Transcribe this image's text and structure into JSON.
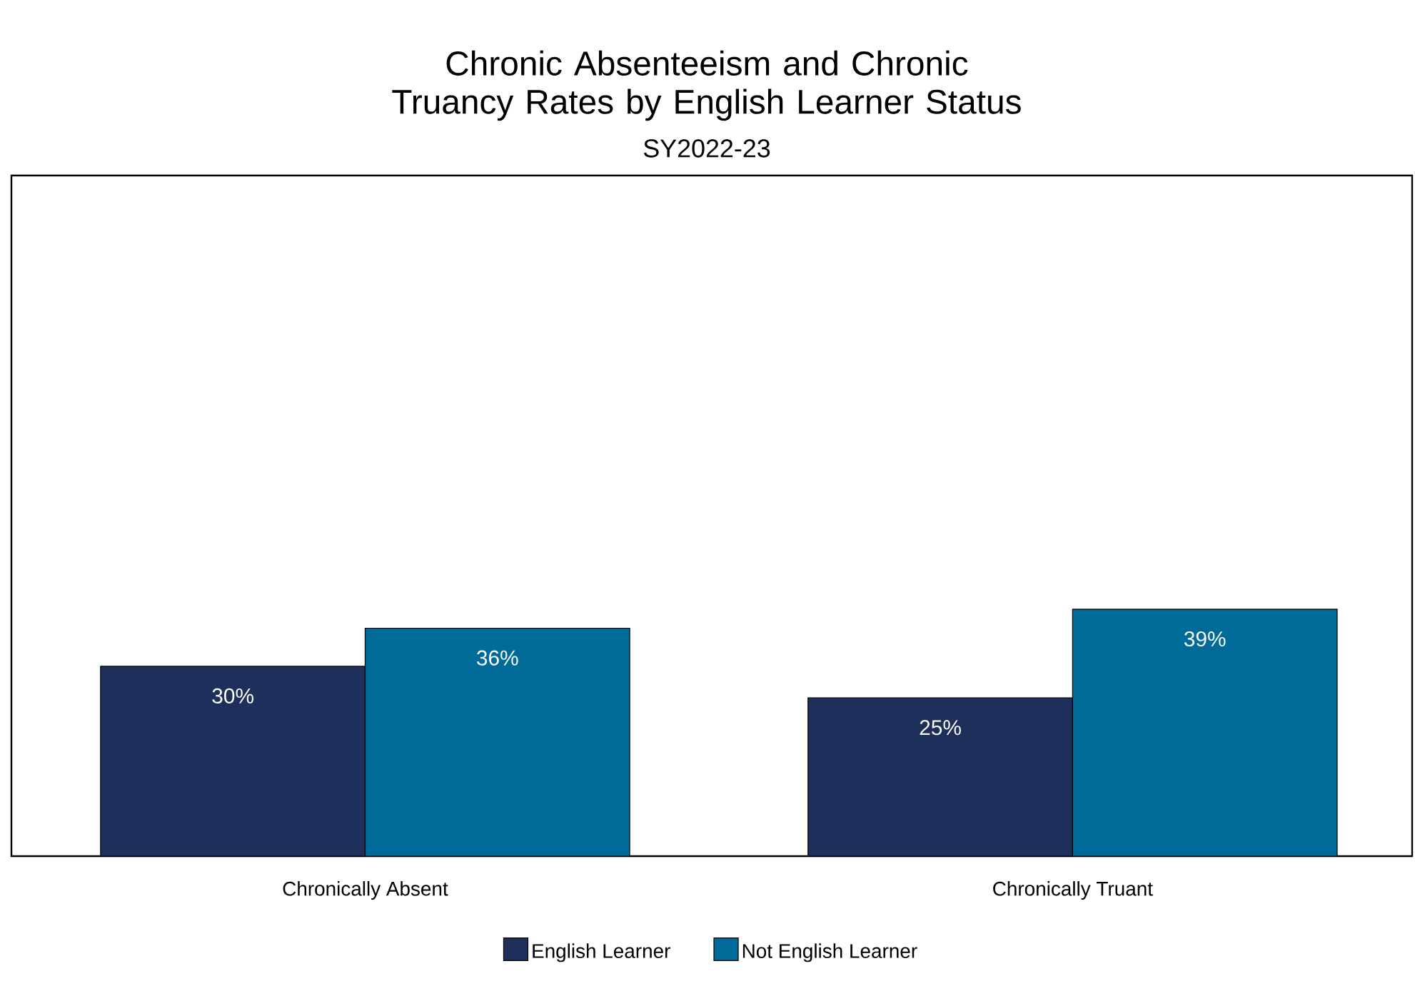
{
  "chart_data": {
    "type": "bar",
    "title": "Chronic Absenteeism and Chronic Truancy Rates by English Learner Status",
    "subtitle": "SY2022-23",
    "categories": [
      "Chronically Absent",
      "Chronically Truant"
    ],
    "series": [
      {
        "name": "English Learner",
        "color": "#1f2f5b",
        "values": [
          30,
          25
        ],
        "value_labels": [
          "30%",
          "25%"
        ]
      },
      {
        "name": "Not English Learner",
        "color": "#006a99",
        "values": [
          36,
          39
        ],
        "value_labels": [
          "36%",
          "39%"
        ]
      }
    ],
    "ylim": [
      0,
      107.5
    ],
    "tick_labels": "x",
    "grid": false,
    "legend": "bottom"
  }
}
